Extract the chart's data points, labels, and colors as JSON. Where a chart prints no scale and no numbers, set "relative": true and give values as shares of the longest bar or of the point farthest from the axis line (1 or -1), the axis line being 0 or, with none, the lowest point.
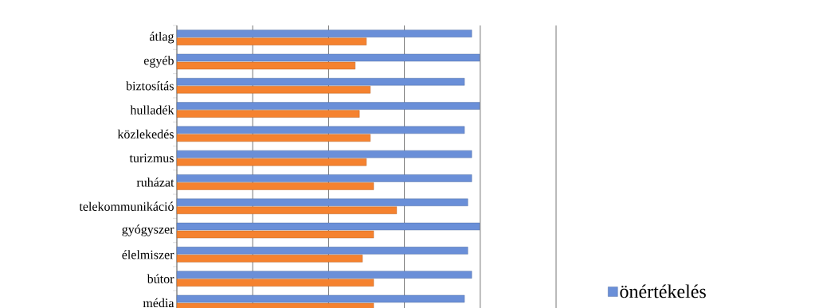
{
  "chart_data": {
    "type": "bar",
    "orientation": "horizontal",
    "relative": true,
    "grid": "x",
    "legend": "bottom right",
    "categories": [
      "átlag",
      "egyéb",
      "biztosítás",
      "hulladék",
      "közlekedés",
      "turizmus",
      "ruházat",
      "telekommunikáció",
      "gyógyszer",
      "élelmiszer",
      "bútor",
      "média"
    ],
    "series": [
      {
        "name": "önértékelés",
        "color": "#6a8fd8",
        "values": [
          0.974,
          1,
          0.95,
          1,
          0.95,
          0.974,
          0.974,
          0.961,
          1,
          0.961,
          0.974,
          0.95
        ]
      },
      {
        "color": "#f5822f",
        "values": [
          0.626,
          0.589,
          0.639,
          0.603,
          0.639,
          0.626,
          0.65,
          0.726,
          0.65,
          0.613,
          0.65,
          0.65
        ]
      }
    ]
  }
}
